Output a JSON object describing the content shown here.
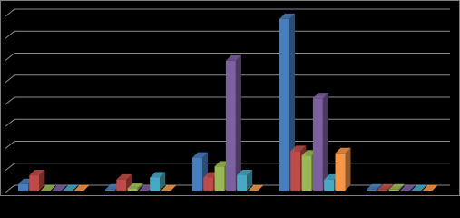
{
  "chart_data": {
    "type": "bar3d",
    "categories": [
      null,
      null,
      null,
      null,
      null
    ],
    "series": [
      {
        "color": "#4a7ebb",
        "values": [
          0.3,
          0.05,
          1.5,
          7.8,
          0.05
        ]
      },
      {
        "color": "#be4b48",
        "values": [
          0.7,
          0.5,
          0.6,
          1.8,
          0.05
        ]
      },
      {
        "color": "#98b954",
        "values": [
          0,
          0.1,
          1.1,
          1.6,
          0.05
        ]
      },
      {
        "color": "#7d60a0",
        "values": [
          0,
          0,
          5.9,
          4.2,
          0
        ]
      },
      {
        "color": "#46aac5",
        "values": [
          0,
          0.6,
          0.7,
          0.5,
          0
        ]
      },
      {
        "color": "#f79646",
        "values": [
          0,
          0,
          0,
          1.7,
          0
        ]
      }
    ],
    "ylim": [
      0,
      8
    ],
    "yticks": [
      0,
      1,
      2,
      3,
      4,
      5,
      6,
      7,
      8
    ],
    "grid": true,
    "background": "#000000"
  }
}
